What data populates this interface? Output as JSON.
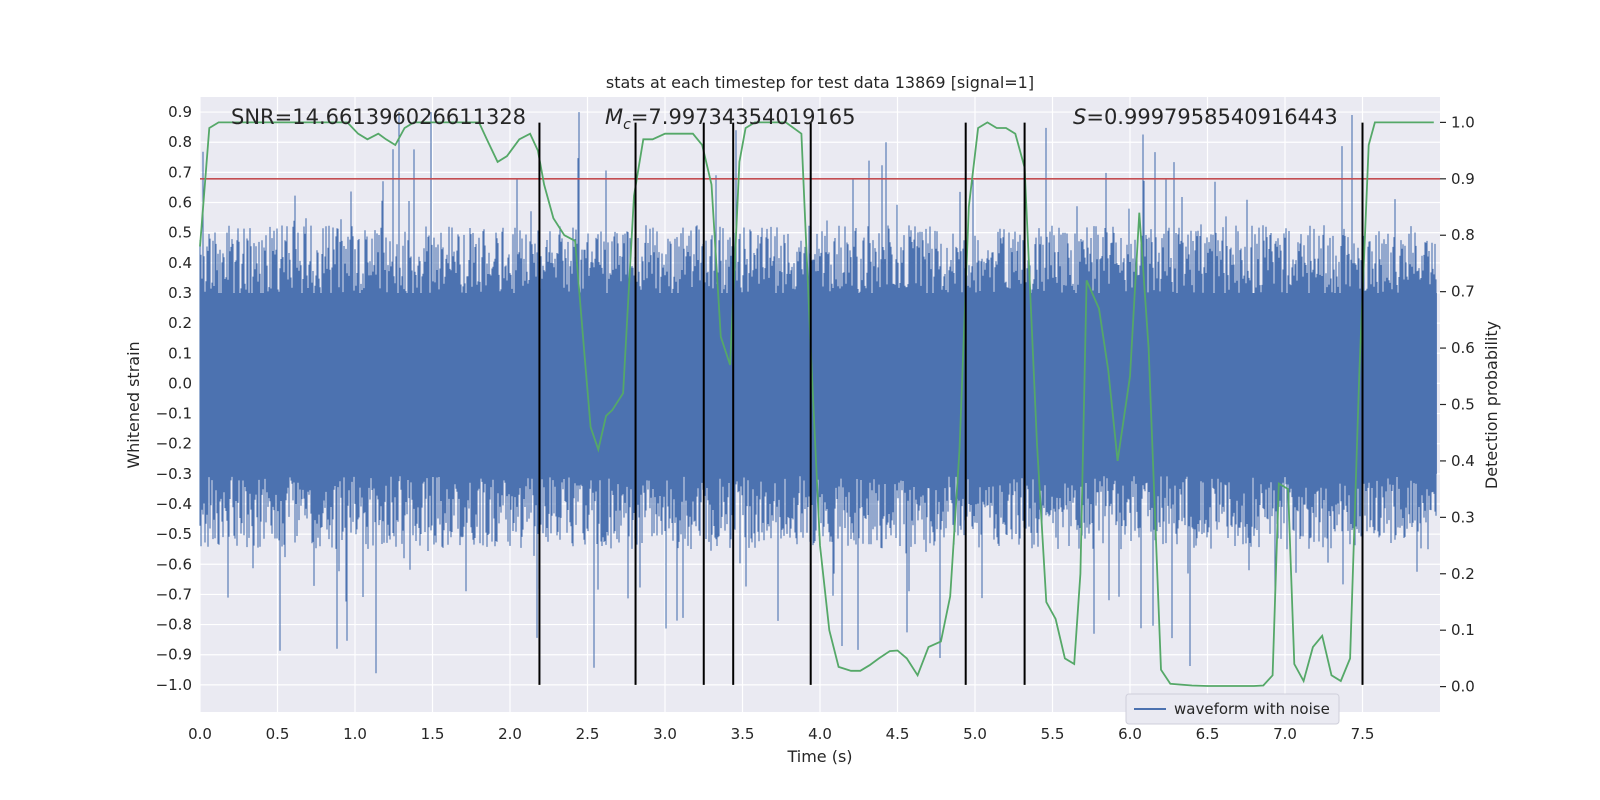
{
  "chart_data": {
    "type": "line",
    "title": "stats at each timestep for test data 13869 [signal=1]",
    "xlabel": "Time (s)",
    "ylabel": "Whitened strain",
    "y2label": "Detection probability",
    "xlim": [
      0.0,
      8.0
    ],
    "ylim": [
      -1.09,
      0.95
    ],
    "y2lim": [
      -0.045,
      1.045
    ],
    "xticks": [
      0.0,
      0.5,
      1.0,
      1.5,
      2.0,
      2.5,
      3.0,
      3.5,
      4.0,
      4.5,
      5.0,
      5.5,
      6.0,
      6.5,
      7.0,
      7.5
    ],
    "xtick_labels": [
      "0.0",
      "0.5",
      "1.0",
      "1.5",
      "2.0",
      "2.5",
      "3.0",
      "3.5",
      "4.0",
      "4.5",
      "5.0",
      "5.5",
      "6.0",
      "6.5",
      "7.0",
      "7.5"
    ],
    "yticks": [
      0.9,
      0.8,
      0.7,
      0.6,
      0.5,
      0.4,
      0.3,
      0.2,
      0.1,
      0.0,
      -0.1,
      -0.2,
      -0.3,
      -0.4,
      -0.5,
      -0.6,
      -0.7,
      -0.8,
      -0.9,
      -1.0
    ],
    "ytick_labels": [
      "0.9",
      "0.8",
      "0.7",
      "0.6",
      "0.5",
      "0.4",
      "0.3",
      "0.2",
      "0.1",
      "0.0",
      "−0.1",
      "−0.2",
      "−0.3",
      "−0.4",
      "−0.5",
      "−0.6",
      "−0.7",
      "−0.8",
      "−0.9",
      "−1.0"
    ],
    "y2ticks": [
      1.0,
      0.9,
      0.8,
      0.7,
      0.6,
      0.5,
      0.4,
      0.3,
      0.2,
      0.1,
      0.0
    ],
    "y2tick_labels": [
      "1.0",
      "0.9",
      "0.8",
      "0.7",
      "0.6",
      "0.5",
      "0.4",
      "0.3",
      "0.2",
      "0.1",
      "0.0"
    ],
    "annotations": {
      "snr": "SNR=14.661396026611328",
      "mc_symbol": "M",
      "mc_sub": "c",
      "mc_value": "=7.99734354019165",
      "s_symbol": "S",
      "s_value": "=0.9997958540916443"
    },
    "legend": {
      "label": "waveform with noise",
      "position": "lower right"
    },
    "series": [
      {
        "name": "waveform with noise",
        "axis": "left",
        "color": "#4c72b0",
        "envelope_upper": 0.42,
        "envelope_lower": -0.44,
        "peak_upper": 0.9,
        "peak_lower": -1.0
      },
      {
        "name": "detection probability",
        "axis": "right",
        "color": "#55a868",
        "x": [
          0.0,
          0.06,
          0.12,
          0.2,
          0.3,
          0.45,
          0.6,
          0.75,
          0.85,
          0.95,
          1.02,
          1.08,
          1.15,
          1.2,
          1.26,
          1.32,
          1.38,
          1.5,
          1.6,
          1.7,
          1.8,
          1.85,
          1.92,
          1.98,
          2.06,
          2.13,
          2.18,
          2.22,
          2.28,
          2.35,
          2.42,
          2.48,
          2.52,
          2.57,
          2.62,
          2.66,
          2.73,
          2.8,
          2.86,
          2.92,
          3.0,
          3.1,
          3.18,
          3.24,
          3.3,
          3.36,
          3.42,
          3.48,
          3.52,
          3.58,
          3.68,
          3.78,
          3.88,
          3.94,
          4.0,
          4.06,
          4.12,
          4.2,
          4.26,
          4.32,
          4.38,
          4.45,
          4.5,
          4.56,
          4.63,
          4.7,
          4.78,
          4.84,
          4.9,
          4.96,
          5.02,
          5.08,
          5.14,
          5.2,
          5.26,
          5.32,
          5.4,
          5.46,
          5.52,
          5.58,
          5.64,
          5.68,
          5.72,
          5.8,
          5.86,
          5.92,
          6.0,
          6.06,
          6.12,
          6.2,
          6.26,
          6.4,
          6.5,
          6.6,
          6.7,
          6.8,
          6.86,
          6.92,
          6.96,
          7.02,
          7.06,
          7.12,
          7.18,
          7.24,
          7.3,
          7.36,
          7.42,
          7.48,
          7.54,
          7.58,
          7.66,
          7.76,
          7.86,
          7.96
        ],
        "y": [
          0.78,
          0.99,
          1.0,
          1.0,
          1.0,
          1.0,
          1.0,
          1.0,
          1.0,
          1.0,
          0.98,
          0.97,
          0.98,
          0.97,
          0.96,
          0.99,
          1.0,
          1.0,
          1.0,
          1.0,
          1.0,
          0.97,
          0.93,
          0.94,
          0.97,
          0.98,
          0.95,
          0.89,
          0.83,
          0.8,
          0.79,
          0.59,
          0.46,
          0.42,
          0.48,
          0.49,
          0.52,
          0.87,
          0.97,
          0.97,
          0.98,
          0.98,
          0.98,
          0.96,
          0.89,
          0.62,
          0.57,
          0.93,
          0.99,
          1.0,
          1.0,
          1.0,
          0.98,
          0.6,
          0.25,
          0.1,
          0.035,
          0.028,
          0.028,
          0.038,
          0.05,
          0.063,
          0.064,
          0.05,
          0.02,
          0.07,
          0.08,
          0.16,
          0.42,
          0.85,
          0.99,
          1.0,
          0.99,
          0.99,
          0.98,
          0.92,
          0.43,
          0.15,
          0.12,
          0.05,
          0.04,
          0.2,
          0.72,
          0.67,
          0.56,
          0.4,
          0.55,
          0.84,
          0.6,
          0.03,
          0.005,
          0.002,
          0.001,
          0.001,
          0.001,
          0.001,
          0.002,
          0.02,
          0.36,
          0.35,
          0.04,
          0.01,
          0.07,
          0.09,
          0.02,
          0.01,
          0.05,
          0.56,
          0.96,
          1.0,
          1.0,
          1.0,
          1.0,
          1.0
        ]
      }
    ],
    "threshold_line": {
      "axis": "right",
      "value": 0.9,
      "color": "#c44e52"
    },
    "event_lines_x": [
      2.19,
      2.81,
      3.25,
      3.44,
      3.94,
      4.94,
      5.32,
      7.5
    ],
    "event_line_range_y": [
      -1.0,
      0.865
    ]
  }
}
